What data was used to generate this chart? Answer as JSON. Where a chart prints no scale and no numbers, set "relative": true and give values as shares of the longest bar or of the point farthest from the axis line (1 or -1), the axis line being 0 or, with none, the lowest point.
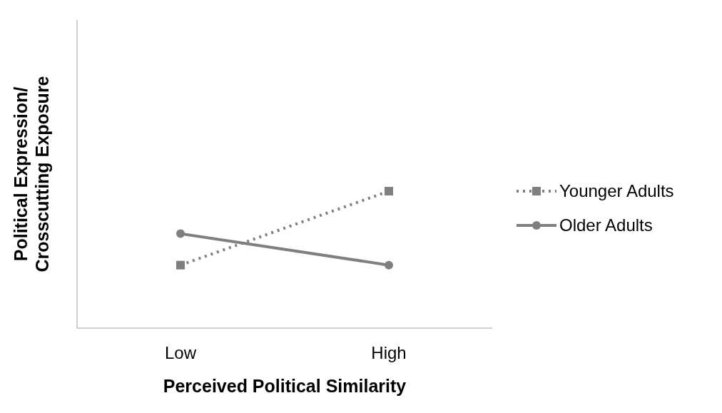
{
  "chart_data": {
    "type": "line",
    "relative": true,
    "xlabel": "Perceived Political Similarity",
    "ylabel": "Political Expression/\nCrosscutting Exposure",
    "categories": [
      "Low",
      "High"
    ],
    "legend": "right",
    "grid": false,
    "series": [
      {
        "name": "Younger Adults",
        "color": "#7f7f7f",
        "values": [
          0.46,
          1
        ],
        "marker": "square",
        "line_style": "dotted"
      },
      {
        "name": "Older Adults",
        "color": "#7f7f7f",
        "values": [
          0.69,
          0.46
        ],
        "marker": "circle",
        "line_style": "solid"
      }
    ]
  }
}
